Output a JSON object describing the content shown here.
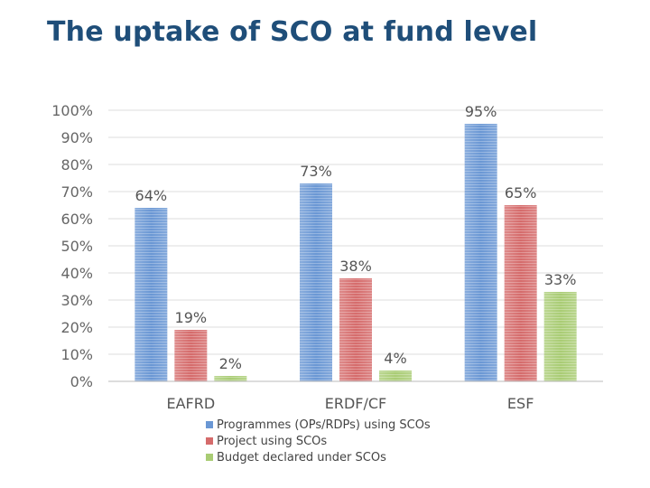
{
  "header": {
    "title": "The uptake of SCO at fund level"
  },
  "chart_data": {
    "type": "bar",
    "categories": [
      "EAFRD",
      "ERDF/CF",
      "ESF"
    ],
    "series": [
      {
        "name": "Programmes (OPs/RDPs) using SCOs",
        "values": [
          64,
          73,
          95
        ],
        "color": "#6a97d4"
      },
      {
        "name": "Project using SCOs",
        "values": [
          19,
          38,
          65
        ],
        "color": "#d56b6b"
      },
      {
        "name": "Budget declared under SCOs",
        "values": [
          2,
          4,
          33
        ],
        "color": "#a9cc74"
      }
    ],
    "data_labels": [
      [
        "64%",
        "73%",
        "95%"
      ],
      [
        "19%",
        "38%",
        "65%"
      ],
      [
        "2%",
        "4%",
        "33%"
      ]
    ],
    "yticks": [
      "0%",
      "10%",
      "20%",
      "30%",
      "40%",
      "50%",
      "60%",
      "70%",
      "80%",
      "90%",
      "100%"
    ],
    "ylim": [
      0,
      100
    ],
    "grid": true,
    "legend_position": "bottom"
  }
}
